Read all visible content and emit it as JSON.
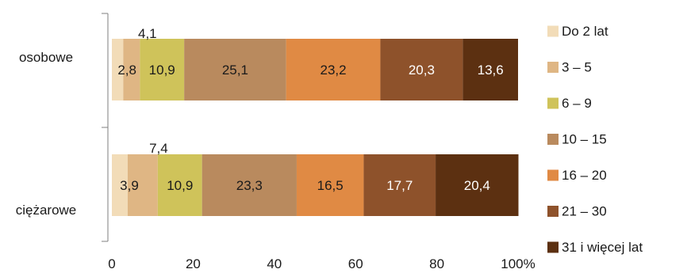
{
  "chart_data": {
    "type": "bar",
    "orientation": "horizontal",
    "stacked": true,
    "categories": [
      "osobowe",
      "ciężarowe"
    ],
    "series": [
      {
        "name": "Do 2 lat",
        "color": "#f2dcb8",
        "values": [
          2.8,
          3.9
        ],
        "labels": [
          "",
          ""
        ],
        "label_color": "#1a1a1a"
      },
      {
        "name": "3 – 5",
        "color": "#dfb684",
        "values": [
          4.1,
          7.4
        ],
        "labels": [
          "2,8",
          "3,9"
        ],
        "label_color": "#1a1a1a"
      },
      {
        "name": "6 – 9",
        "color": "#cfc35a",
        "values": [
          10.9,
          10.9
        ],
        "labels": [
          "10,9",
          "10,9"
        ],
        "label_color": "#1a1a1a"
      },
      {
        "name": "10 – 15",
        "color": "#b98a5e",
        "values": [
          25.1,
          23.3
        ],
        "labels": [
          "25,1",
          "23,3"
        ],
        "label_color": "#1a1a1a"
      },
      {
        "name": "16 – 20",
        "color": "#e08a44",
        "values": [
          23.2,
          16.5
        ],
        "labels": [
          "23,2",
          "16,5"
        ],
        "label_color": "#1a1a1a"
      },
      {
        "name": "21 – 30",
        "color": "#8e522b",
        "values": [
          20.3,
          17.7
        ],
        "labels": [
          "20,3",
          "17,7"
        ],
        "label_color": "#ffffff"
      },
      {
        "name": "31 i więcej lat",
        "color": "#5c3011",
        "values": [
          13.6,
          20.4
        ],
        "labels": [
          "13,6",
          "20,4"
        ],
        "label_color": "#ffffff"
      }
    ],
    "above_labels": [
      "4,1",
      "7,4"
    ],
    "x_ticks": [
      "0",
      "20",
      "40",
      "60",
      "80",
      "100%"
    ],
    "xlim": [
      0,
      100
    ],
    "grid": false,
    "legend": "right"
  }
}
